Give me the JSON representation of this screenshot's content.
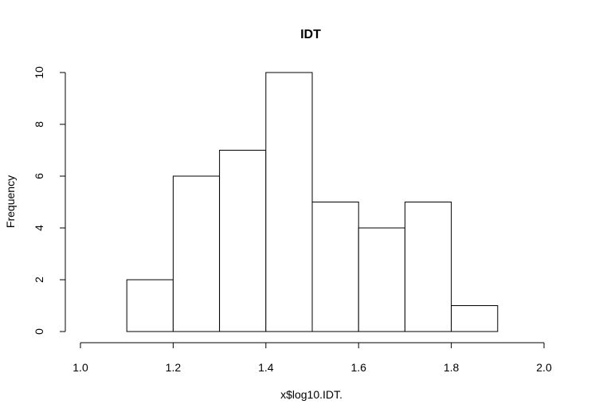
{
  "chart_data": {
    "type": "bar",
    "title": "IDT",
    "xlabel": "x$log10.IDT.",
    "ylabel": "Frequency",
    "bins": [
      [
        1.0,
        1.1
      ],
      [
        1.1,
        1.2
      ],
      [
        1.2,
        1.3
      ],
      [
        1.3,
        1.4
      ],
      [
        1.4,
        1.5
      ],
      [
        1.5,
        1.6
      ],
      [
        1.6,
        1.7
      ],
      [
        1.7,
        1.8
      ],
      [
        1.8,
        1.9
      ],
      [
        1.9,
        2.0
      ]
    ],
    "values": [
      0,
      2,
      6,
      7,
      10,
      5,
      4,
      5,
      1,
      0
    ],
    "xlim": [
      1.0,
      2.0
    ],
    "ylim": [
      0,
      10
    ],
    "x_ticks": [
      "1.0",
      "1.2",
      "1.4",
      "1.6",
      "1.8",
      "2.0"
    ],
    "y_ticks": [
      "0",
      "2",
      "4",
      "6",
      "8",
      "10"
    ],
    "grid": false,
    "colors": {
      "fill": "#ffffff",
      "stroke": "#000000",
      "background": "#ffffff"
    }
  }
}
